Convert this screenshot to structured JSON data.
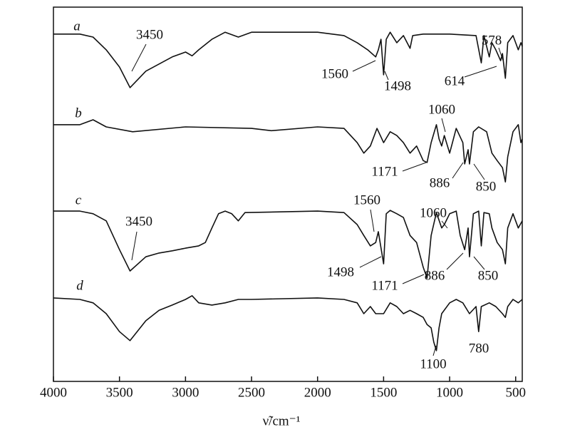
{
  "chart_data": {
    "type": "line",
    "x_label": "ν̃/cm⁻¹",
    "xlim": [
      4000,
      450
    ],
    "xticks": [
      4000,
      3500,
      3000,
      2500,
      2000,
      1500,
      1000,
      500
    ],
    "ylim": [
      0,
      100
    ],
    "series": [
      {
        "name": "a",
        "color": "#111111",
        "x": [
          4000,
          3800,
          3700,
          3600,
          3500,
          3420,
          3300,
          3100,
          3000,
          2950,
          2900,
          2800,
          2700,
          2600,
          2500,
          2000,
          1800,
          1700,
          1620,
          1560,
          1540,
          1520,
          1500,
          1480,
          1450,
          1400,
          1350,
          1300,
          1280,
          1200,
          1000,
          800,
          760,
          740,
          700,
          680,
          650,
          614,
          600,
          578,
          560,
          520,
          480,
          460,
          450
        ],
        "values": [
          92.8,
          92.8,
          92.0,
          88.6,
          84.0,
          78.5,
          82.9,
          86.7,
          88.0,
          87.0,
          88.6,
          91.4,
          93.3,
          92.0,
          93.3,
          93.3,
          92.4,
          90.5,
          88.6,
          86.7,
          88.6,
          91.4,
          81.9,
          91.4,
          93.3,
          90.5,
          92.4,
          89.0,
          92.4,
          92.8,
          92.8,
          92.4,
          85.1,
          92.4,
          86.7,
          90.5,
          88.6,
          85.7,
          87.6,
          81.0,
          90.5,
          92.4,
          88.6,
          90.5,
          89.5
        ]
      },
      {
        "name": "b",
        "color": "#111111",
        "x": [
          4000,
          3800,
          3700,
          3600,
          3400,
          3000,
          2500,
          2350,
          2000,
          1800,
          1700,
          1650,
          1600,
          1550,
          1500,
          1450,
          1400,
          1350,
          1300,
          1250,
          1200,
          1171,
          1140,
          1100,
          1080,
          1060,
          1040,
          1000,
          950,
          900,
          886,
          860,
          850,
          820,
          780,
          720,
          680,
          640,
          600,
          578,
          560,
          520,
          480,
          460,
          450
        ],
        "values": [
          68.6,
          68.6,
          69.9,
          68.0,
          66.7,
          68.0,
          67.6,
          67.0,
          68.0,
          67.6,
          63.8,
          61.0,
          62.9,
          67.6,
          63.8,
          66.7,
          65.7,
          63.8,
          61.0,
          62.9,
          59.0,
          58.5,
          63.8,
          68.6,
          64.8,
          62.9,
          65.7,
          61.0,
          67.6,
          63.8,
          58.1,
          61.9,
          58.1,
          66.7,
          68.0,
          66.7,
          61.0,
          59.0,
          57.1,
          53.3,
          60.0,
          66.7,
          68.6,
          63.8,
          64.8
        ]
      },
      {
        "name": "c",
        "color": "#111111",
        "x": [
          4000,
          3800,
          3700,
          3600,
          3500,
          3420,
          3300,
          3200,
          3100,
          3000,
          2900,
          2850,
          2800,
          2750,
          2700,
          2650,
          2600,
          2550,
          2000,
          1800,
          1700,
          1650,
          1600,
          1560,
          1540,
          1500,
          1480,
          1450,
          1400,
          1350,
          1300,
          1250,
          1200,
          1171,
          1140,
          1100,
          1060,
          1040,
          1000,
          950,
          920,
          886,
          860,
          850,
          820,
          780,
          760,
          740,
          700,
          680,
          640,
          600,
          578,
          560,
          520,
          480,
          450
        ],
        "values": [
          45.5,
          45.5,
          44.8,
          42.9,
          35.2,
          29.5,
          33.3,
          34.3,
          34.9,
          35.6,
          36.2,
          37.1,
          41.0,
          44.8,
          45.5,
          44.8,
          42.9,
          45.1,
          45.5,
          45.1,
          41.9,
          39.0,
          36.2,
          37.1,
          40.0,
          31.4,
          44.8,
          45.7,
          44.8,
          43.8,
          39.0,
          37.1,
          30.5,
          27.6,
          39.0,
          45.1,
          41.0,
          41.9,
          44.8,
          45.5,
          39.0,
          35.2,
          41.0,
          33.3,
          44.8,
          45.5,
          36.2,
          45.1,
          44.8,
          41.0,
          37.1,
          35.2,
          31.4,
          41.0,
          44.8,
          41.0,
          42.9
        ]
      },
      {
        "name": "d",
        "color": "#111111",
        "x": [
          4000,
          3800,
          3700,
          3600,
          3500,
          3420,
          3300,
          3200,
          3100,
          3000,
          2950,
          2900,
          2800,
          2700,
          2600,
          2500,
          2000,
          1800,
          1700,
          1650,
          1600,
          1560,
          1500,
          1450,
          1400,
          1350,
          1300,
          1250,
          1200,
          1171,
          1140,
          1120,
          1100,
          1080,
          1060,
          1000,
          950,
          900,
          850,
          800,
          780,
          760,
          700,
          650,
          600,
          578,
          560,
          520,
          480,
          450
        ],
        "values": [
          22.3,
          21.9,
          21.0,
          18.1,
          13.3,
          10.9,
          16.2,
          19.0,
          20.4,
          21.9,
          22.9,
          21.0,
          20.4,
          21.0,
          21.9,
          21.9,
          22.3,
          21.9,
          21.0,
          18.1,
          20.0,
          18.1,
          18.1,
          21.0,
          20.0,
          18.1,
          19.0,
          18.1,
          17.1,
          15.2,
          14.3,
          10.5,
          8.2,
          14.3,
          18.1,
          21.0,
          21.9,
          21.0,
          18.1,
          20.0,
          13.3,
          20.0,
          21.0,
          20.0,
          18.1,
          17.1,
          20.0,
          21.9,
          21.0,
          21.9
        ]
      }
    ],
    "annotations": [
      "3450",
      "1560",
      "1498",
      "614",
      "578",
      "1060",
      "1171",
      "886",
      "850",
      "3450",
      "1560",
      "1498",
      "1060",
      "1171",
      "886",
      "850",
      "1100",
      "780"
    ]
  }
}
